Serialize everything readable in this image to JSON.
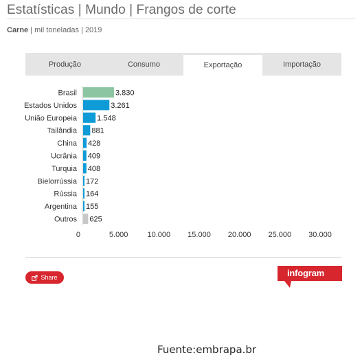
{
  "page": {
    "title": "Estatísticas | Mundo | Frangos de corte",
    "subtitle_bold": "Carne",
    "subtitle_rest": " | mil toneladas | 2019"
  },
  "tabs": [
    {
      "label": "Produção",
      "active": false
    },
    {
      "label": "Consumo",
      "active": false
    },
    {
      "label": "Exportação",
      "active": true
    },
    {
      "label": "Importação",
      "active": false
    }
  ],
  "chart_data": {
    "type": "bar",
    "orientation": "horizontal",
    "categories": [
      "Brasil",
      "Estados Unidos",
      "União Europeia",
      "Tailândia",
      "China",
      "Ucrânia",
      "Turquia",
      "Bielorrússia",
      "Rússia",
      "Argentina",
      "Outros"
    ],
    "values": [
      3830,
      3261,
      1548,
      881,
      428,
      409,
      408,
      172,
      164,
      155,
      625
    ],
    "value_labels": [
      "3.830",
      "3.261",
      "1.548",
      "881",
      "428",
      "409",
      "408",
      "172",
      "164",
      "155",
      "625"
    ],
    "bar_colors": [
      "#8cc5a1",
      "#0f9bd7",
      "#0f9bd7",
      "#0f9bd7",
      "#0f9bd7",
      "#0f9bd7",
      "#0f9bd7",
      "#0f9bd7",
      "#0f9bd7",
      "#0f9bd7",
      "#c8c8c8"
    ],
    "xlim": [
      0,
      30000
    ],
    "xticks": [
      0,
      5000,
      10000,
      15000,
      20000,
      25000,
      30000
    ],
    "xtick_labels": [
      "0",
      "5.000",
      "10.000",
      "15.000",
      "20.000",
      "25.000",
      "30.000"
    ],
    "grid": false
  },
  "share": {
    "label": "Share",
    "icon": "share-icon"
  },
  "logo": {
    "text": "infogram",
    "color": "#d7262d"
  },
  "footer": {
    "source": "Fuente:embrapa.br"
  }
}
